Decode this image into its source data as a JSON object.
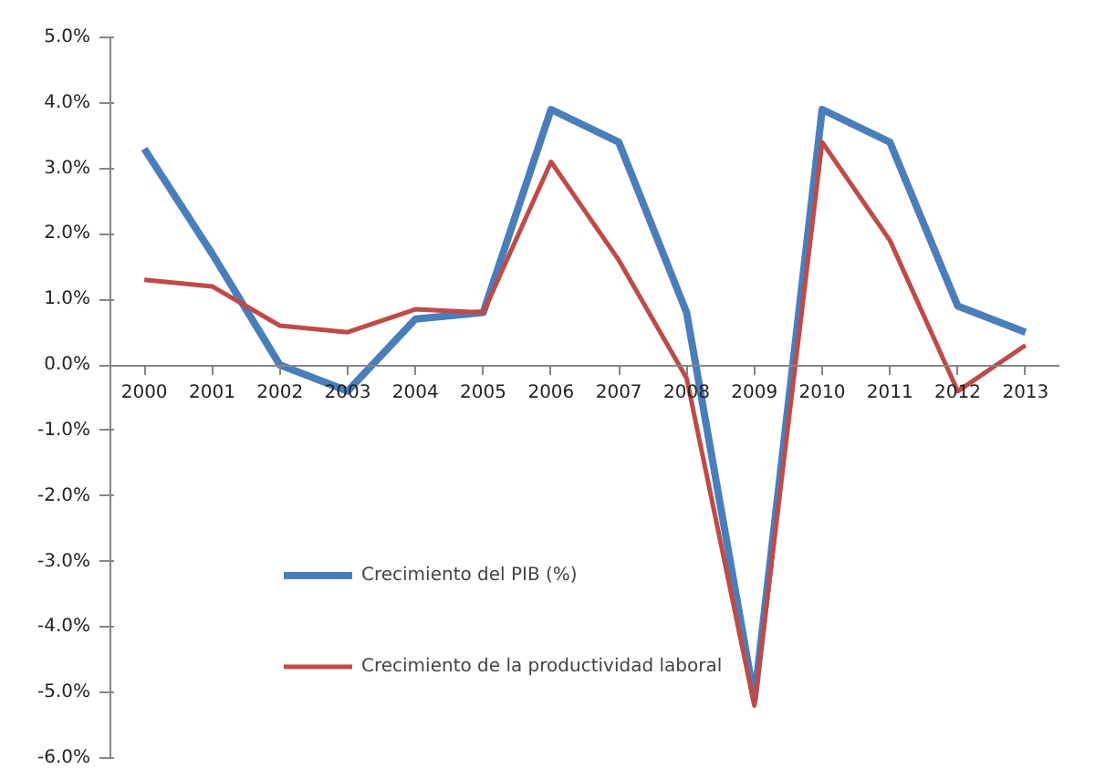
{
  "chart_data": {
    "type": "line",
    "categories": [
      "2000",
      "2001",
      "2002",
      "2003",
      "2004",
      "2005",
      "2006",
      "2007",
      "2008",
      "2009",
      "2010",
      "2011",
      "2012",
      "2013"
    ],
    "series": [
      {
        "name": "Crecimiento del PIB (%)",
        "color": "#4a7ebb",
        "values": [
          3.3,
          1.7,
          0.0,
          -0.4,
          0.7,
          0.8,
          3.9,
          3.4,
          0.8,
          -5.1,
          3.9,
          3.4,
          0.9,
          0.5
        ]
      },
      {
        "name": "Crecimiento de la productividad laboral",
        "color": "#be4b48",
        "values": [
          1.3,
          1.2,
          0.6,
          0.5,
          0.85,
          0.8,
          3.1,
          1.6,
          -0.2,
          -5.2,
          3.4,
          1.9,
          -0.4,
          0.3
        ]
      }
    ],
    "ylim": [
      -6,
      5
    ],
    "yticks": [
      {
        "value": -6,
        "label": "-6.0%"
      },
      {
        "value": -5,
        "label": "-5.0%"
      },
      {
        "value": -4,
        "label": "-4.0%"
      },
      {
        "value": -3,
        "label": "-3.0%"
      },
      {
        "value": -2,
        "label": "-2.0%"
      },
      {
        "value": -1,
        "label": "-1.0%"
      },
      {
        "value": 0,
        "label": "0.0%"
      },
      {
        "value": 1,
        "label": "1.0%"
      },
      {
        "value": 2,
        "label": "2.0%"
      },
      {
        "value": 3,
        "label": "3.0%"
      },
      {
        "value": 4,
        "label": "4.0%"
      },
      {
        "value": 5,
        "label": "5.0%"
      }
    ],
    "grid": false,
    "legend": "bottom left",
    "marker": "none",
    "line_style": "solid"
  }
}
